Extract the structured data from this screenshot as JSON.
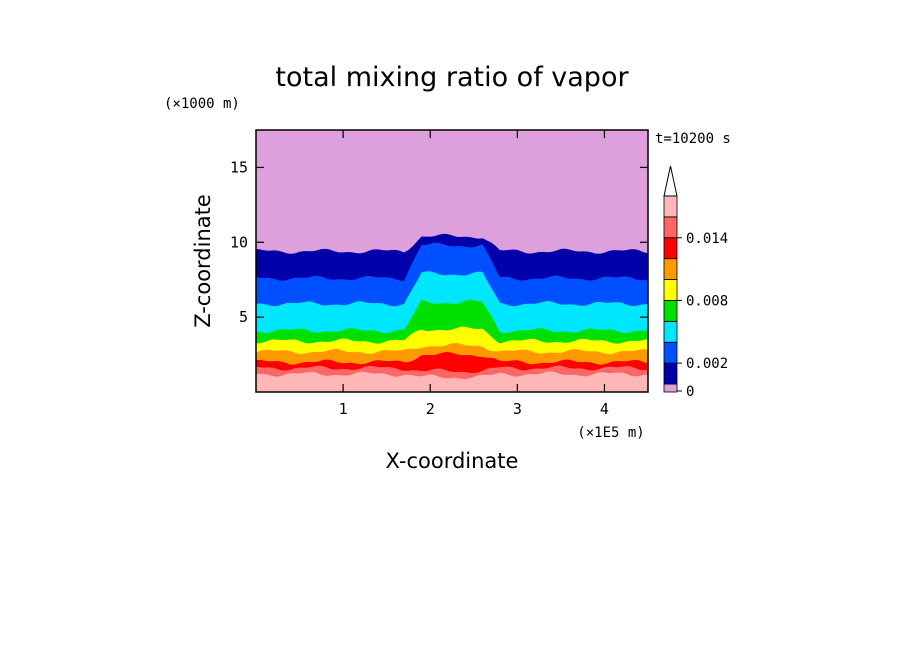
{
  "chart_data": {
    "type": "heatmap",
    "title": "total mixing ratio of vapor",
    "xlabel": "X-coordinate",
    "ylabel": "Z-coordinate",
    "x_unit": "(×1E5 m)",
    "y_unit": "(×1000 m)",
    "time_label": "t=10200 s",
    "xlim": [
      0,
      4.5
    ],
    "ylim": [
      0,
      17.5
    ],
    "x_ticks": [
      1,
      2,
      3,
      4
    ],
    "y_ticks": [
      5,
      10,
      15
    ],
    "colorbar": {
      "levels": [
        0,
        0.0005,
        0.002,
        0.004,
        0.006,
        0.008,
        0.01,
        0.012,
        0.014,
        0.016
      ],
      "tick_labels": [
        "0",
        "0.002",
        "0.008",
        "0.014"
      ],
      "tick_values": [
        0,
        0.002,
        0.008,
        0.014
      ],
      "colors": [
        "#dda0dd",
        "#0000aa",
        "#0050ff",
        "#00e6ff",
        "#00e000",
        "#ffff00",
        "#ff9900",
        "#ff0000",
        "#ff6666",
        "#ffb6b6"
      ],
      "extend_max": true
    },
    "bands": [
      {
        "level": 0.016,
        "color": "#ffb6b6",
        "top_env": 1.2,
        "top_center": 1.0
      },
      {
        "level": 0.014,
        "color": "#ff6666",
        "top_env": 1.6,
        "top_center": 1.4
      },
      {
        "level": 0.012,
        "color": "#ff0000",
        "top_env": 2.0,
        "top_center": 2.5
      },
      {
        "level": 0.01,
        "color": "#ff9900",
        "top_env": 2.7,
        "top_center": 3.1
      },
      {
        "level": 0.008,
        "color": "#ffff00",
        "top_env": 3.4,
        "top_center": 4.2
      },
      {
        "level": 0.006,
        "color": "#00e000",
        "top_env": 4.1,
        "top_center": 6.0
      },
      {
        "level": 0.004,
        "color": "#00e6ff",
        "top_env": 5.9,
        "top_center": 7.9
      },
      {
        "level": 0.002,
        "color": "#0050ff",
        "top_env": 7.6,
        "top_center": 9.8
      },
      {
        "level": 0.0005,
        "color": "#0000aa",
        "top_env": 9.4,
        "top_center": 10.4
      },
      {
        "level": 0,
        "color": "#dda0dd",
        "top_env": 17.5,
        "top_center": 17.5
      }
    ]
  }
}
